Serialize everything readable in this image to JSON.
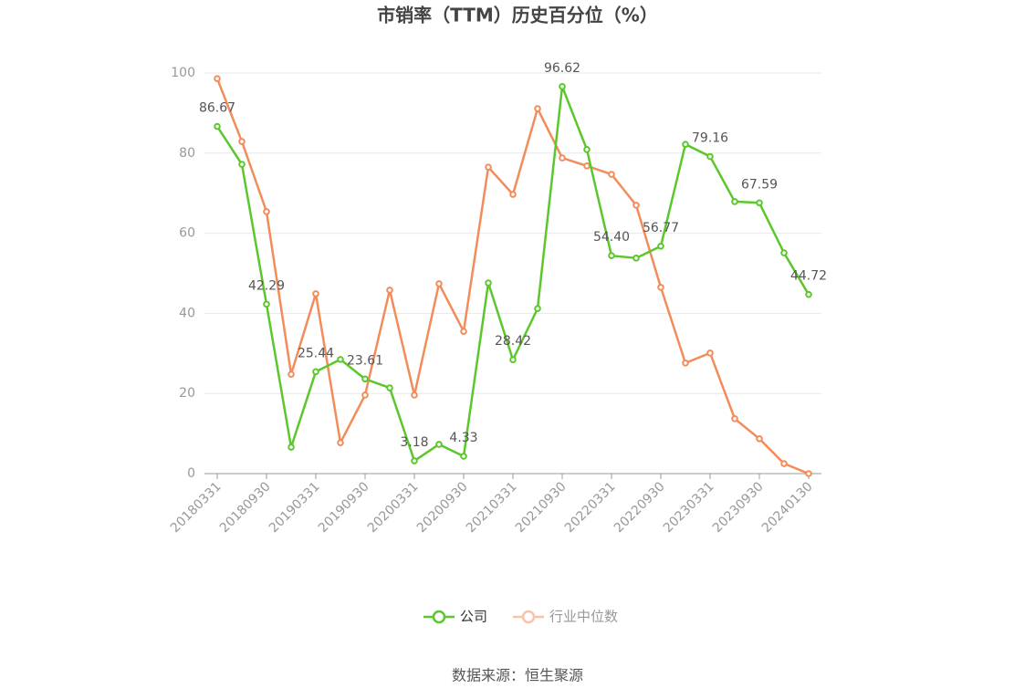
{
  "chart_data": {
    "type": "line",
    "title": "市销率（TTM）历史百分位（%）",
    "categories": [
      "20180331",
      null,
      "20180930",
      null,
      "20190331",
      null,
      "20190930",
      null,
      "20200331",
      null,
      "20200930",
      null,
      "20210331",
      null,
      "20210930",
      null,
      "20220331",
      null,
      "20220930",
      null,
      "20230331",
      null,
      "20230930",
      null,
      "20240130"
    ],
    "series": [
      {
        "name": "公司",
        "color": "#5cc72c",
        "values": [
          86.67,
          77.2,
          42.29,
          6.6,
          25.44,
          28.5,
          23.61,
          21.4,
          3.18,
          7.3,
          4.33,
          47.6,
          28.42,
          41.2,
          96.62,
          80.9,
          54.4,
          53.8,
          56.77,
          82.2,
          79.16,
          67.9,
          67.59,
          55.1,
          44.72
        ],
        "value_labels": [
          "86.67",
          null,
          "42.29",
          null,
          "25.44",
          null,
          "23.61",
          null,
          "3.18",
          null,
          "4.33",
          null,
          "28.42",
          null,
          "96.62",
          null,
          "54.40",
          null,
          "56.77",
          null,
          "79.16",
          null,
          "67.59",
          null,
          "44.72"
        ]
      },
      {
        "name": "行业中位数",
        "color": "#f28c5a",
        "values": [
          98.6,
          82.9,
          65.4,
          24.8,
          44.9,
          7.7,
          19.6,
          45.8,
          19.6,
          47.4,
          35.5,
          76.5,
          69.7,
          91.1,
          78.8,
          76.8,
          74.7,
          67.0,
          46.5,
          27.6,
          30.1,
          13.7,
          8.7,
          2.5,
          0
        ]
      }
    ],
    "ylim": [
      0,
      100
    ],
    "yticks": [
      0,
      20,
      40,
      60,
      80,
      100
    ],
    "grid": true,
    "source": "数据来源：恒生聚源"
  }
}
